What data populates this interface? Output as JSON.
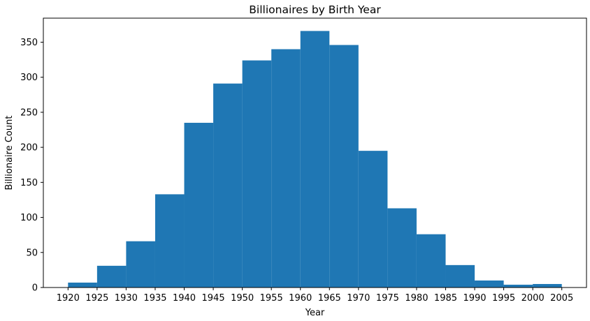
{
  "chart_data": {
    "type": "bar",
    "subtype": "histogram",
    "title": "Billionaires by Birth Year",
    "xlabel": "Year",
    "ylabel": "Billionaire Count",
    "bin_edges": [
      1920,
      1925,
      1930,
      1935,
      1940,
      1945,
      1950,
      1955,
      1960,
      1965,
      1970,
      1975,
      1980,
      1985,
      1990,
      1995,
      2000,
      2005
    ],
    "values": [
      7,
      31,
      66,
      133,
      235,
      291,
      324,
      340,
      366,
      346,
      195,
      113,
      76,
      32,
      10,
      4,
      5
    ],
    "xticks": [
      "1920",
      "1925",
      "1930",
      "1935",
      "1940",
      "1945",
      "1950",
      "1955",
      "1960",
      "1965",
      "1970",
      "1975",
      "1980",
      "1985",
      "1990",
      "1995",
      "2000",
      "2005"
    ],
    "yticks": [
      "0",
      "50",
      "100",
      "150",
      "200",
      "250",
      "300",
      "350"
    ],
    "xlim": [
      1915.75,
      2009.25
    ],
    "ylim": [
      0,
      384.3
    ],
    "grid": false,
    "legend": "none",
    "bar_color": "#1f77b4"
  }
}
